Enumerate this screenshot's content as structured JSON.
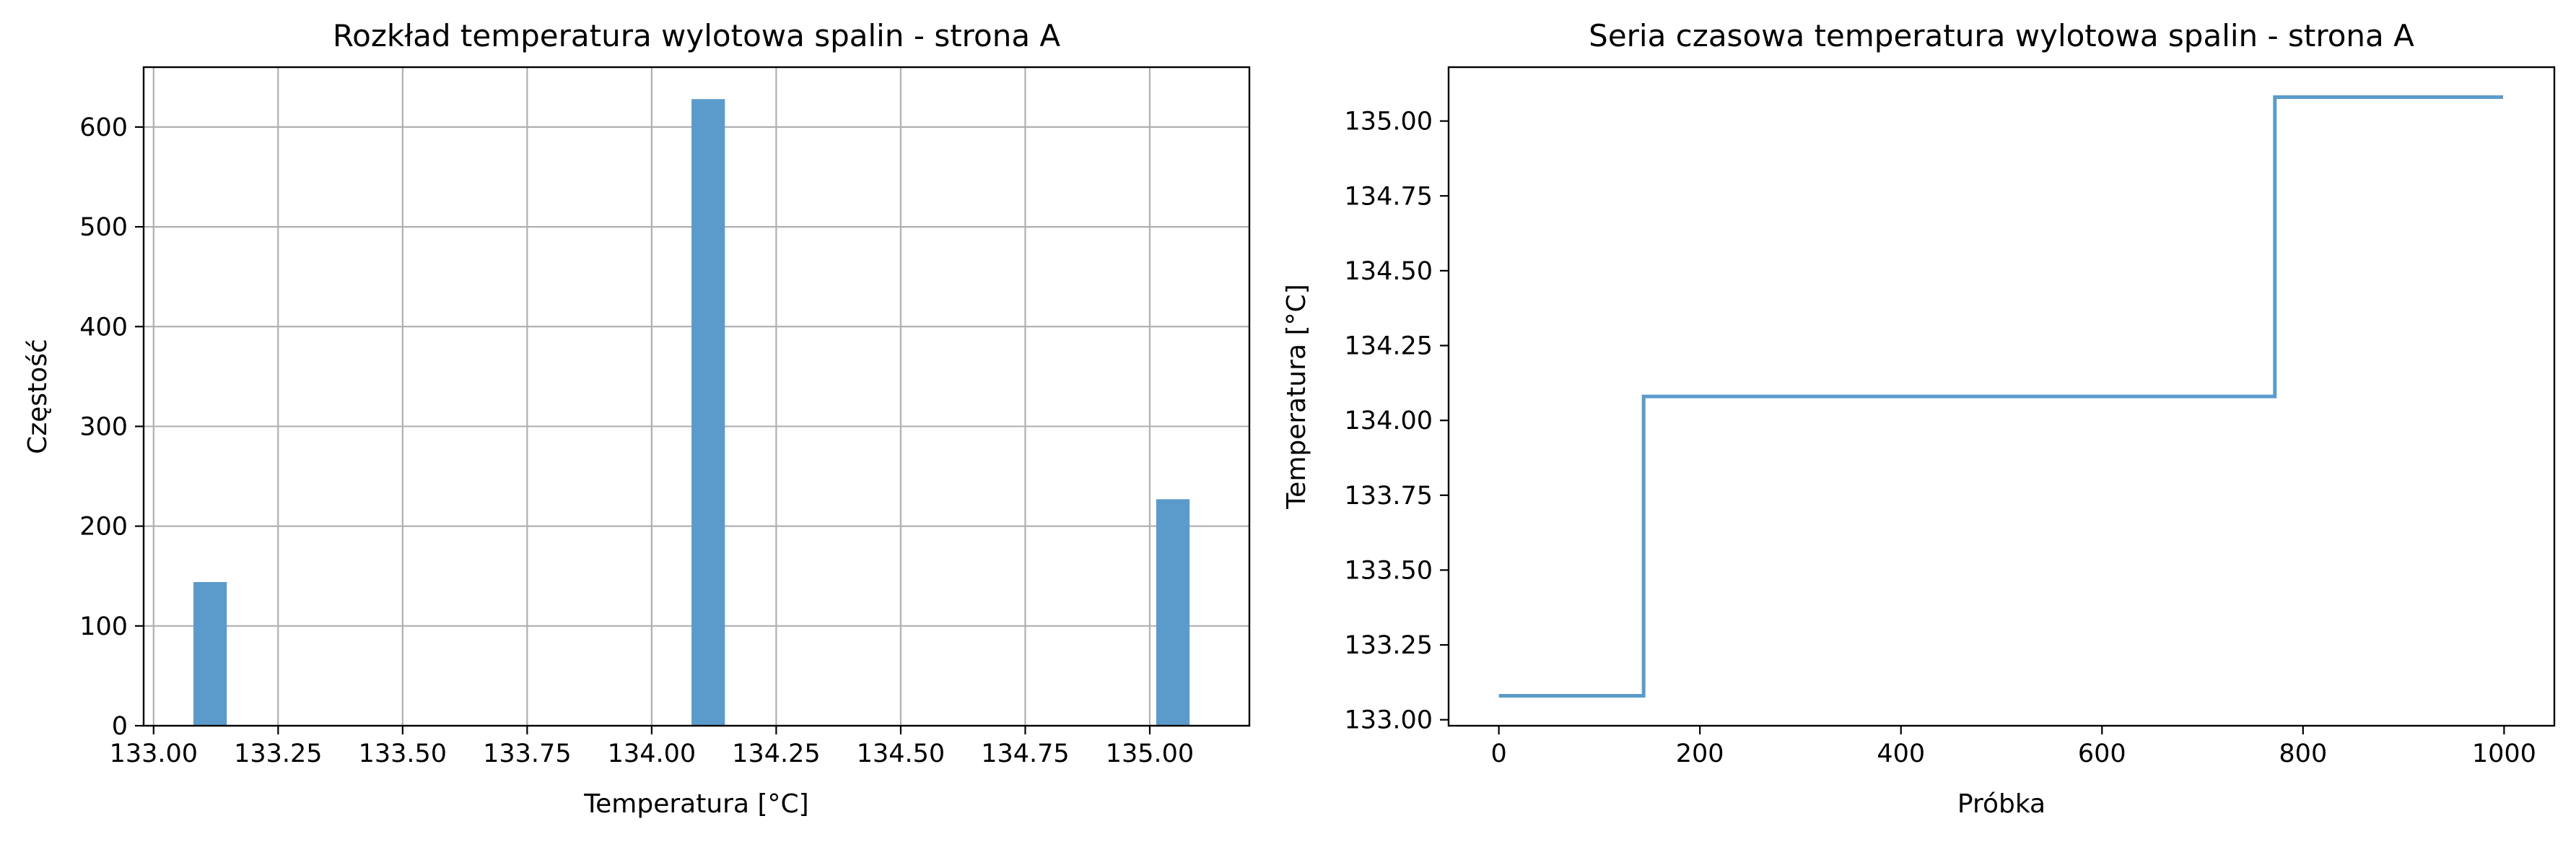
{
  "colors": {
    "series": "#5b9bcb",
    "axis": "#000000",
    "grid": "#b0b0b0",
    "background": "#ffffff"
  },
  "chart_data": [
    {
      "type": "bar",
      "title": "Rozkład temperatura wylotowa spalin - strona A",
      "xlabel": "Temperatura [°C]",
      "ylabel": "Częstość",
      "grid": true,
      "xlim": [
        132.98,
        135.2
      ],
      "ylim": [
        0,
        660
      ],
      "xticks": [
        133.0,
        133.25,
        133.5,
        133.75,
        134.0,
        134.25,
        134.5,
        134.75,
        135.0
      ],
      "xtick_labels": [
        "133.00",
        "133.25",
        "133.50",
        "133.75",
        "134.00",
        "134.25",
        "134.50",
        "134.75",
        "135.00"
      ],
      "yticks": [
        0,
        100,
        200,
        300,
        400,
        500,
        600
      ],
      "ytick_labels": [
        "0",
        "100",
        "200",
        "300",
        "400",
        "500",
        "600"
      ],
      "bars": [
        {
          "x_start": 133.08,
          "x_end": 133.147,
          "value": 144
        },
        {
          "x_start": 134.08,
          "x_end": 134.147,
          "value": 628
        },
        {
          "x_start": 135.013,
          "x_end": 135.08,
          "value": 227
        }
      ]
    },
    {
      "type": "line",
      "title": "Seria czasowa temperatura wylotowa spalin - strona A",
      "xlabel": "Próbka",
      "ylabel": "Temperatura [°C]",
      "grid": false,
      "xlim": [
        -50,
        1050
      ],
      "ylim": [
        132.98,
        135.18
      ],
      "xticks": [
        0,
        200,
        400,
        600,
        800,
        1000
      ],
      "xtick_labels": [
        "0",
        "200",
        "400",
        "600",
        "800",
        "1000"
      ],
      "yticks": [
        133.0,
        133.25,
        133.5,
        133.75,
        134.0,
        134.25,
        134.5,
        134.75,
        135.0
      ],
      "ytick_labels": [
        "133.00",
        "133.25",
        "133.50",
        "133.75",
        "134.00",
        "134.25",
        "134.50",
        "134.75",
        "135.00"
      ],
      "x": [
        0,
        144,
        144,
        772,
        772,
        999
      ],
      "y": [
        133.08,
        133.08,
        134.08,
        134.08,
        135.08,
        135.08
      ]
    }
  ]
}
